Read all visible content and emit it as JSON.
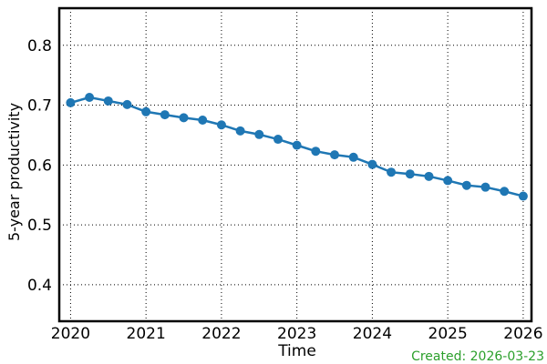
{
  "chart_data": {
    "type": "line",
    "title": "",
    "xlabel": "Time",
    "ylabel": "5-year productivity",
    "grid": "dotted",
    "legend": "none",
    "xlim": [
      2019.85,
      2026.11
    ],
    "ylim": [
      0.339,
      0.862
    ],
    "x_ticks": [
      {
        "v": 2020,
        "label": "2020"
      },
      {
        "v": 2021,
        "label": "2021"
      },
      {
        "v": 2022,
        "label": "2022"
      },
      {
        "v": 2023,
        "label": "2023"
      },
      {
        "v": 2024,
        "label": "2024"
      },
      {
        "v": 2025,
        "label": "2025"
      },
      {
        "v": 2026,
        "label": "2026"
      }
    ],
    "y_ticks": [
      {
        "v": 0.4,
        "label": "0.4"
      },
      {
        "v": 0.5,
        "label": "0.5"
      },
      {
        "v": 0.6,
        "label": "0.6"
      },
      {
        "v": 0.7,
        "label": "0.7"
      },
      {
        "v": 0.8,
        "label": "0.8"
      }
    ],
    "series": [
      {
        "name": "5-year productivity",
        "color": "#1f77b4",
        "marker": "circle",
        "x": [
          2020.0,
          2020.25,
          2020.5,
          2020.75,
          2021.0,
          2021.25,
          2021.5,
          2021.75,
          2022.0,
          2022.25,
          2022.5,
          2022.75,
          2023.0,
          2023.25,
          2023.5,
          2023.75,
          2024.0,
          2024.25,
          2024.5,
          2024.75,
          2025.0,
          2025.25,
          2025.5,
          2025.75,
          2026.0
        ],
        "y": [
          0.704,
          0.713,
          0.707,
          0.701,
          0.689,
          0.684,
          0.679,
          0.675,
          0.667,
          0.657,
          0.651,
          0.643,
          0.633,
          0.623,
          0.617,
          0.613,
          0.601,
          0.588,
          0.585,
          0.581,
          0.574,
          0.566,
          0.563,
          0.556,
          0.548
        ]
      }
    ],
    "annotation": {
      "text": "Created: 2026-03-23",
      "color": "#2ca02c"
    },
    "frame_color": "#000000",
    "grid_color": "#000000",
    "text_color": "#000000"
  }
}
